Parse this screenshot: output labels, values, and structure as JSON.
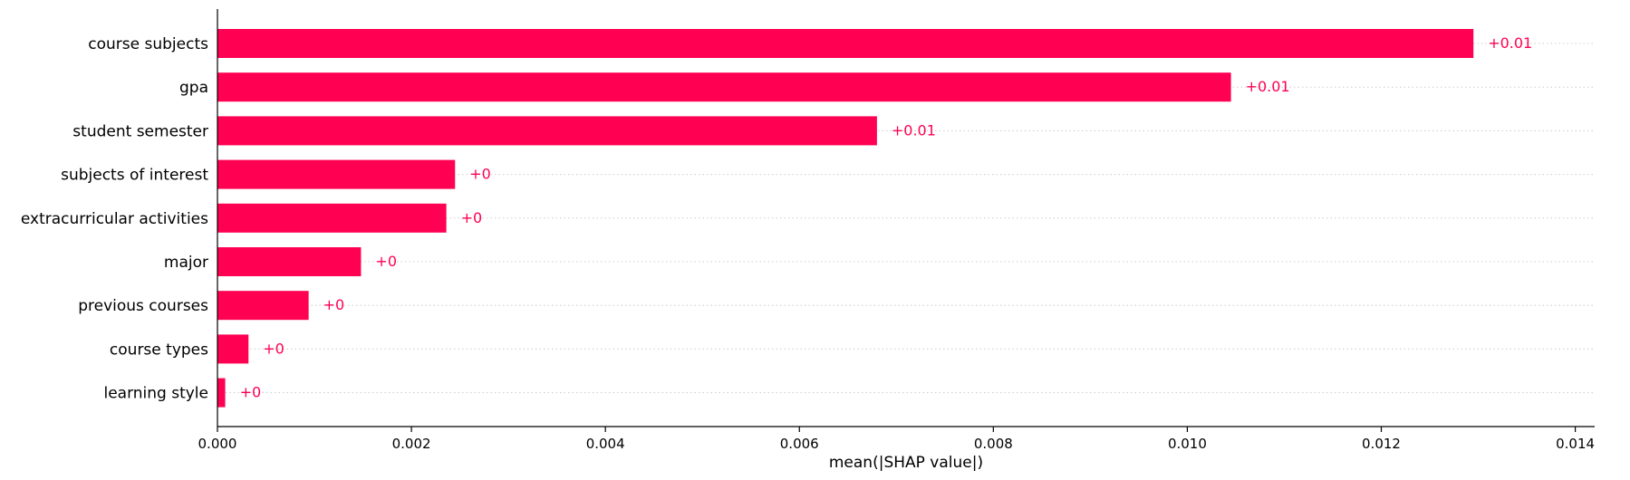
{
  "chart_data": {
    "type": "bar",
    "orientation": "horizontal",
    "title": "",
    "xlabel": "mean(|SHAP value|)",
    "ylabel": "",
    "xlim": [
      0,
      0.0142
    ],
    "x_ticks": [
      0.0,
      0.002,
      0.004,
      0.006,
      0.008,
      0.01,
      0.012,
      0.014
    ],
    "x_tick_labels": [
      "0.000",
      "0.002",
      "0.004",
      "0.006",
      "0.008",
      "0.010",
      "0.012",
      "0.014"
    ],
    "grid": "horizontal dotted guide lines per bar",
    "legend": "none",
    "bar_color": "#ff0052",
    "categories": [
      "course subjects",
      "gpa",
      "student semester",
      "subjects of interest",
      "extracurricular activities",
      "major",
      "previous courses",
      "course types",
      "learning style"
    ],
    "values": [
      0.01295,
      0.01045,
      0.0068,
      0.00245,
      0.00236,
      0.00148,
      0.00094,
      0.00032,
      8e-05
    ],
    "value_labels": [
      "+0.01",
      "+0.01",
      "+0.01",
      "+0",
      "+0",
      "+0",
      "+0",
      "+0",
      "+0"
    ]
  }
}
